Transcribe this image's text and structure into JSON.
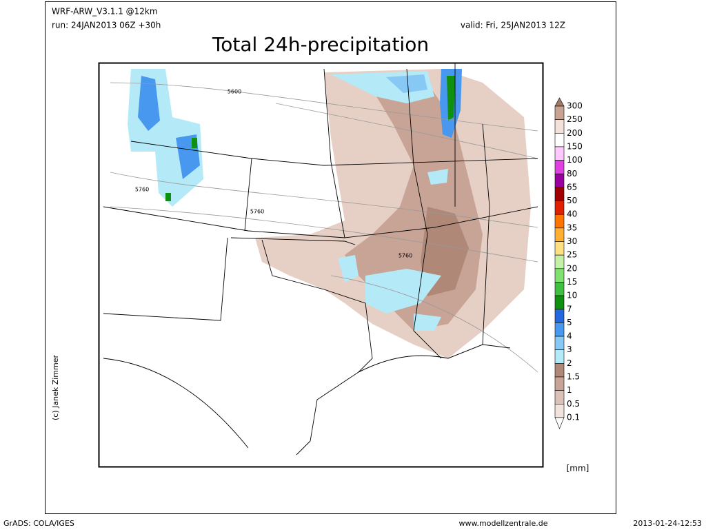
{
  "header": {
    "model": "WRF-ARW_V3.1.1 @12km",
    "run": "run: 24JAN2013 06Z +30h",
    "valid": "valid: Fri, 25JAN2013 12Z",
    "title": "Total 24h-precipitation"
  },
  "map": {
    "contour_labels": [
      "5600",
      "5760",
      "5760",
      "5760"
    ]
  },
  "legend": {
    "labels": [
      "300",
      "250",
      "200",
      "150",
      "100",
      "80",
      "65",
      "50",
      "40",
      "35",
      "30",
      "25",
      "20",
      "15",
      "10",
      "7",
      "5",
      "4",
      "3",
      "2",
      "1.5",
      "1",
      "0.5",
      "0.1"
    ],
    "colors": [
      "#a07868",
      "#c8a292",
      "#f2e2da",
      "#ffffff",
      "#ffc8ff",
      "#e040e0",
      "#9a00a0",
      "#a00000",
      "#e02000",
      "#ff7400",
      "#ffb030",
      "#ffe080",
      "#c4f0a8",
      "#80e070",
      "#40c040",
      "#109010",
      "#2468e0",
      "#4898f0",
      "#88c8f4",
      "#b4eaf8",
      "#b08878",
      "#c8a496",
      "#dcc2b6",
      "#f2e4dc",
      "#ffffff"
    ],
    "unit": "[mm]"
  },
  "credit": "(c) Janek Zimmer",
  "footer": {
    "left": "GrADS: COLA/IGES",
    "center": "www.modellzentrale.de",
    "right": "2013-01-24-12:53"
  }
}
